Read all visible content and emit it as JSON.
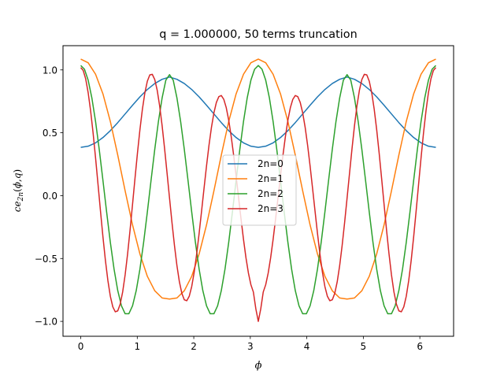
{
  "chart_data": {
    "type": "line",
    "title": "q = 1.000000, 50 terms truncation",
    "xlabel": "ϕ",
    "ylabel": "ce2n(ϕ,q)",
    "xlim": [
      -0.3142,
      6.5973
    ],
    "ylim": [
      -1.1183,
      1.1927
    ],
    "x_ticks": [
      "0",
      "1",
      "2",
      "3",
      "4",
      "5",
      "6"
    ],
    "y_ticks": [
      "−1.0",
      "−0.5",
      "0.0",
      "0.5",
      "1.0"
    ],
    "grid": false,
    "legend_position": "center",
    "series": [
      {
        "name": "2n=0",
        "color": "#1f77b4",
        "x": [
          0.0,
          0.1309,
          0.2618,
          0.3927,
          0.5236,
          0.6545,
          0.7854,
          0.9163,
          1.0472,
          1.1781,
          1.309,
          1.4399,
          1.5708,
          1.7017,
          1.8326,
          1.9635,
          2.0944,
          2.2253,
          2.3562,
          2.4871,
          2.618,
          2.7489,
          2.8798,
          3.0107,
          3.1416,
          3.2725,
          3.4034,
          3.5343,
          3.6652,
          3.7961,
          3.927,
          4.0579,
          4.1888,
          4.3197,
          4.4506,
          4.5815,
          4.7124,
          4.8433,
          4.9742,
          5.1051,
          5.236,
          5.3669,
          5.4978,
          5.6287,
          5.7596,
          5.8905,
          6.0214,
          6.1523,
          6.2832
        ],
        "values": [
          0.384,
          0.3931,
          0.4198,
          0.462,
          0.5169,
          0.5808,
          0.6497,
          0.7193,
          0.7855,
          0.8442,
          0.8917,
          0.9254,
          0.9432,
          0.9254,
          0.8917,
          0.8442,
          0.7855,
          0.7193,
          0.6497,
          0.5808,
          0.5169,
          0.462,
          0.4198,
          0.3931,
          0.384,
          0.3931,
          0.4198,
          0.462,
          0.5169,
          0.5808,
          0.6497,
          0.7193,
          0.7855,
          0.8442,
          0.8917,
          0.9254,
          0.9432,
          0.9254,
          0.8917,
          0.8442,
          0.7855,
          0.7193,
          0.6497,
          0.5808,
          0.5169,
          0.462,
          0.4198,
          0.3931,
          0.384
        ]
      },
      {
        "name": "2n=1",
        "color": "#ff7f0e",
        "x": [
          0.0,
          0.1309,
          0.2618,
          0.3927,
          0.5236,
          0.6545,
          0.7854,
          0.9163,
          1.0472,
          1.1781,
          1.309,
          1.4399,
          1.5708,
          1.7017,
          1.8326,
          1.9635,
          2.0944,
          2.2253,
          2.3562,
          2.4871,
          2.618,
          2.7489,
          2.8798,
          3.0107,
          3.1416,
          3.2725,
          3.4034,
          3.5343,
          3.6652,
          3.7961,
          3.927,
          4.0579,
          4.1888,
          4.3197,
          4.4506,
          4.5815,
          4.7124,
          4.8433,
          4.9742,
          5.1051,
          5.236,
          5.3669,
          5.4978,
          5.6287,
          5.7596,
          5.8905,
          6.0214,
          6.1523,
          6.2832
        ],
        "values": [
          1.086,
          1.0568,
          0.9657,
          0.8092,
          0.5898,
          0.3226,
          0.0378,
          -0.2327,
          -0.4642,
          -0.6413,
          -0.7561,
          -0.8136,
          -0.8224,
          -0.8136,
          -0.7561,
          -0.6413,
          -0.4642,
          -0.2327,
          0.0378,
          0.3226,
          0.5898,
          0.8092,
          0.9657,
          1.0568,
          1.086,
          1.0568,
          0.9657,
          0.8092,
          0.5898,
          0.3226,
          0.0378,
          -0.2327,
          -0.4642,
          -0.6413,
          -0.7561,
          -0.8136,
          -0.8224,
          -0.8136,
          -0.7561,
          -0.6413,
          -0.4642,
          -0.2327,
          0.0378,
          0.3226,
          0.5898,
          0.8092,
          0.9657,
          1.0568,
          1.086
        ]
      },
      {
        "name": "2n=2",
        "color": "#2ca02c",
        "x": [
          0.0,
          0.0654,
          0.1309,
          0.1963,
          0.2618,
          0.3272,
          0.3927,
          0.4581,
          0.5236,
          0.589,
          0.6545,
          0.7199,
          0.7854,
          0.8508,
          0.9163,
          0.9817,
          1.0472,
          1.1126,
          1.1781,
          1.2435,
          1.309,
          1.3744,
          1.4399,
          1.5053,
          1.5708,
          1.6362,
          1.7017,
          1.7671,
          1.8326,
          1.898,
          1.9635,
          2.0289,
          2.0944,
          2.1598,
          2.2253,
          2.2907,
          2.3562,
          2.4216,
          2.4871,
          2.5525,
          2.618,
          2.6834,
          2.7489,
          2.8143,
          2.8798,
          2.9452,
          3.0107,
          3.0761,
          3.1416,
          3.207,
          3.2725,
          3.3379,
          3.4034,
          3.4688,
          3.5343,
          3.5997,
          3.6652,
          3.7306,
          3.7961,
          3.8615,
          3.927,
          3.9924,
          4.0579,
          4.1233,
          4.1888,
          4.2542,
          4.3197,
          4.3851,
          4.4506,
          4.516,
          4.5815,
          4.6469,
          4.7124,
          4.7778,
          4.8433,
          4.9087,
          4.9742,
          5.0396,
          5.1051,
          5.1705,
          5.236,
          5.3014,
          5.3669,
          5.4323,
          5.4978,
          5.5632,
          5.6287,
          5.6941,
          5.7596,
          5.825,
          5.8905,
          5.9559,
          6.0214,
          6.0868,
          6.1523,
          6.2177,
          6.2832
        ],
        "values": [
          1.0349,
          1.0055,
          0.9184,
          0.7775,
          0.5902,
          0.3667,
          0.1205,
          -0.1312,
          -0.3713,
          -0.5835,
          -0.7548,
          -0.8758,
          -0.9392,
          -0.9392,
          -0.8758,
          -0.7548,
          -0.5835,
          -0.3713,
          -0.1312,
          0.1205,
          0.3667,
          0.5902,
          0.7775,
          0.9184,
          0.9622,
          0.9184,
          0.7775,
          0.5902,
          0.3667,
          0.1205,
          -0.1312,
          -0.3713,
          -0.5835,
          -0.7548,
          -0.8758,
          -0.9392,
          -0.9392,
          -0.8758,
          -0.7548,
          -0.5835,
          -0.3713,
          -0.1312,
          0.1205,
          0.3667,
          0.5902,
          0.7775,
          0.9184,
          1.0055,
          1.0349,
          1.0055,
          0.9184,
          0.7775,
          0.5902,
          0.3667,
          0.1205,
          -0.1312,
          -0.3713,
          -0.5835,
          -0.7548,
          -0.8758,
          -0.9392,
          -0.9392,
          -0.8758,
          -0.7548,
          -0.5835,
          -0.3713,
          -0.1312,
          0.1205,
          0.3667,
          0.5902,
          0.7775,
          0.9184,
          0.9622,
          0.9184,
          0.7775,
          0.5902,
          0.3667,
          0.1205,
          -0.1312,
          -0.3713,
          -0.5835,
          -0.7548,
          -0.8758,
          -0.9392,
          -0.9392,
          -0.8758,
          -0.7548,
          -0.5835,
          -0.3713,
          -0.1312,
          0.1205,
          0.3667,
          0.5902,
          0.7775,
          0.9184,
          1.0055,
          1.0349
        ]
      },
      {
        "name": "2n=3",
        "color": "#d62728",
        "x": [
          0.0,
          0.0436,
          0.0873,
          0.1309,
          0.1745,
          0.2182,
          0.2618,
          0.3054,
          0.3491,
          0.3927,
          0.4363,
          0.48,
          0.5236,
          0.5672,
          0.6109,
          0.6545,
          0.6981,
          0.7418,
          0.7854,
          0.829,
          0.8727,
          0.9163,
          0.9599,
          1.0036,
          1.0472,
          1.0908,
          1.1345,
          1.1781,
          1.2217,
          1.2654,
          1.309,
          1.3526,
          1.3963,
          1.4399,
          1.4835,
          1.5272,
          1.5708,
          1.6144,
          1.6581,
          1.7017,
          1.7453,
          1.789,
          1.8326,
          1.8762,
          1.9199,
          1.9635,
          2.0071,
          2.0508,
          2.0944,
          2.138,
          2.1817,
          2.2253,
          2.2689,
          2.3126,
          2.3562,
          2.3998,
          2.4435,
          2.4871,
          2.5307,
          2.5744,
          2.618,
          2.6616,
          2.7053,
          2.7489,
          2.7925,
          2.8362,
          2.8798,
          2.9234,
          2.9671,
          3.0107,
          3.0543,
          3.098,
          3.1416,
          3.1852,
          3.2289,
          3.2725,
          3.3161,
          3.3598,
          3.4034,
          3.447,
          3.4907,
          3.5343,
          3.5779,
          3.6216,
          3.6652,
          3.7088,
          3.7525,
          3.7961,
          3.8397,
          3.8834,
          3.927,
          3.9706,
          4.0143,
          4.0579,
          4.1015,
          4.1452,
          4.1888,
          4.2324,
          4.2761,
          4.3197,
          4.3633,
          4.407,
          4.4506,
          4.4942,
          4.5379,
          4.5815,
          4.6251,
          4.6688,
          4.7124,
          4.756,
          4.7997,
          4.8433,
          4.8869,
          4.9306,
          4.9742,
          5.0178,
          5.0615,
          5.1051,
          5.1487,
          5.1924,
          5.236,
          5.2796,
          5.3233,
          5.3669,
          5.4105,
          5.4542,
          5.4978,
          5.5414,
          5.5851,
          5.6287,
          5.6723,
          5.716,
          5.7596,
          5.8032,
          5.8469,
          5.8905,
          5.9341,
          5.9778,
          6.0214,
          6.065,
          6.1087,
          6.1523,
          6.1959,
          6.2396,
          6.2832
        ],
        "values": [
          1.018,
          0.9954,
          0.9284,
          0.8197,
          0.6742,
          0.4985,
          0.3007,
          0.0903,
          -0.1227,
          -0.3277,
          -0.5149,
          -0.6751,
          -0.8004,
          -0.8847,
          -0.9239,
          -0.9163,
          -0.8624,
          -0.7651,
          -0.6295,
          -0.4625,
          -0.2724,
          -0.0686,
          0.1388,
          0.3398,
          0.5256,
          0.6874,
          0.8177,
          0.9102,
          0.9602,
          0.9649,
          0.9235,
          0.8382,
          0.7132,
          0.5555,
          0.3739,
          0.1785,
          -0.0196,
          -0.2145,
          -0.3963,
          -0.5558,
          -0.6851,
          -0.7775,
          -0.8284,
          -0.8357,
          -0.7996,
          -0.7225,
          -0.609,
          -0.4655,
          -0.3002,
          -0.1221,
          0.0596,
          0.2363,
          0.4,
          0.5428,
          0.6583,
          0.7412,
          0.7878,
          0.7961,
          0.7662,
          0.6997,
          0.5999,
          0.4718,
          0.3216,
          0.1567,
          -0.0152,
          -0.1865,
          -0.3488,
          -0.4944,
          -0.6163,
          -0.7085,
          -0.7664,
          -0.9,
          -1.0,
          -0.9,
          -0.7664,
          -0.7085,
          -0.6163,
          -0.4944,
          -0.3488,
          -0.1865,
          -0.0152,
          0.1567,
          0.3216,
          0.4718,
          0.5999,
          0.6997,
          0.7662,
          0.7961,
          0.7878,
          0.7412,
          0.6583,
          0.5428,
          0.4,
          0.2363,
          0.0596,
          -0.1221,
          -0.3002,
          -0.4655,
          -0.609,
          -0.7225,
          -0.7996,
          -0.8357,
          -0.8284,
          -0.7775,
          -0.6851,
          -0.5558,
          -0.3963,
          -0.2145,
          -0.0196,
          0.1785,
          0.3739,
          0.5555,
          0.7132,
          0.8382,
          0.9235,
          0.9649,
          0.9602,
          0.9102,
          0.8177,
          0.6874,
          0.5256,
          0.3398,
          0.1388,
          -0.0686,
          -0.2724,
          -0.4625,
          -0.6295,
          -0.7651,
          -0.8624,
          -0.9163,
          -0.9239,
          -0.8847,
          -0.8004,
          -0.6751,
          -0.5149,
          -0.3277,
          -0.1227,
          0.0903,
          0.3007,
          0.4985,
          0.6742,
          0.8197,
          0.9284,
          0.9954,
          1.018
        ]
      }
    ]
  }
}
